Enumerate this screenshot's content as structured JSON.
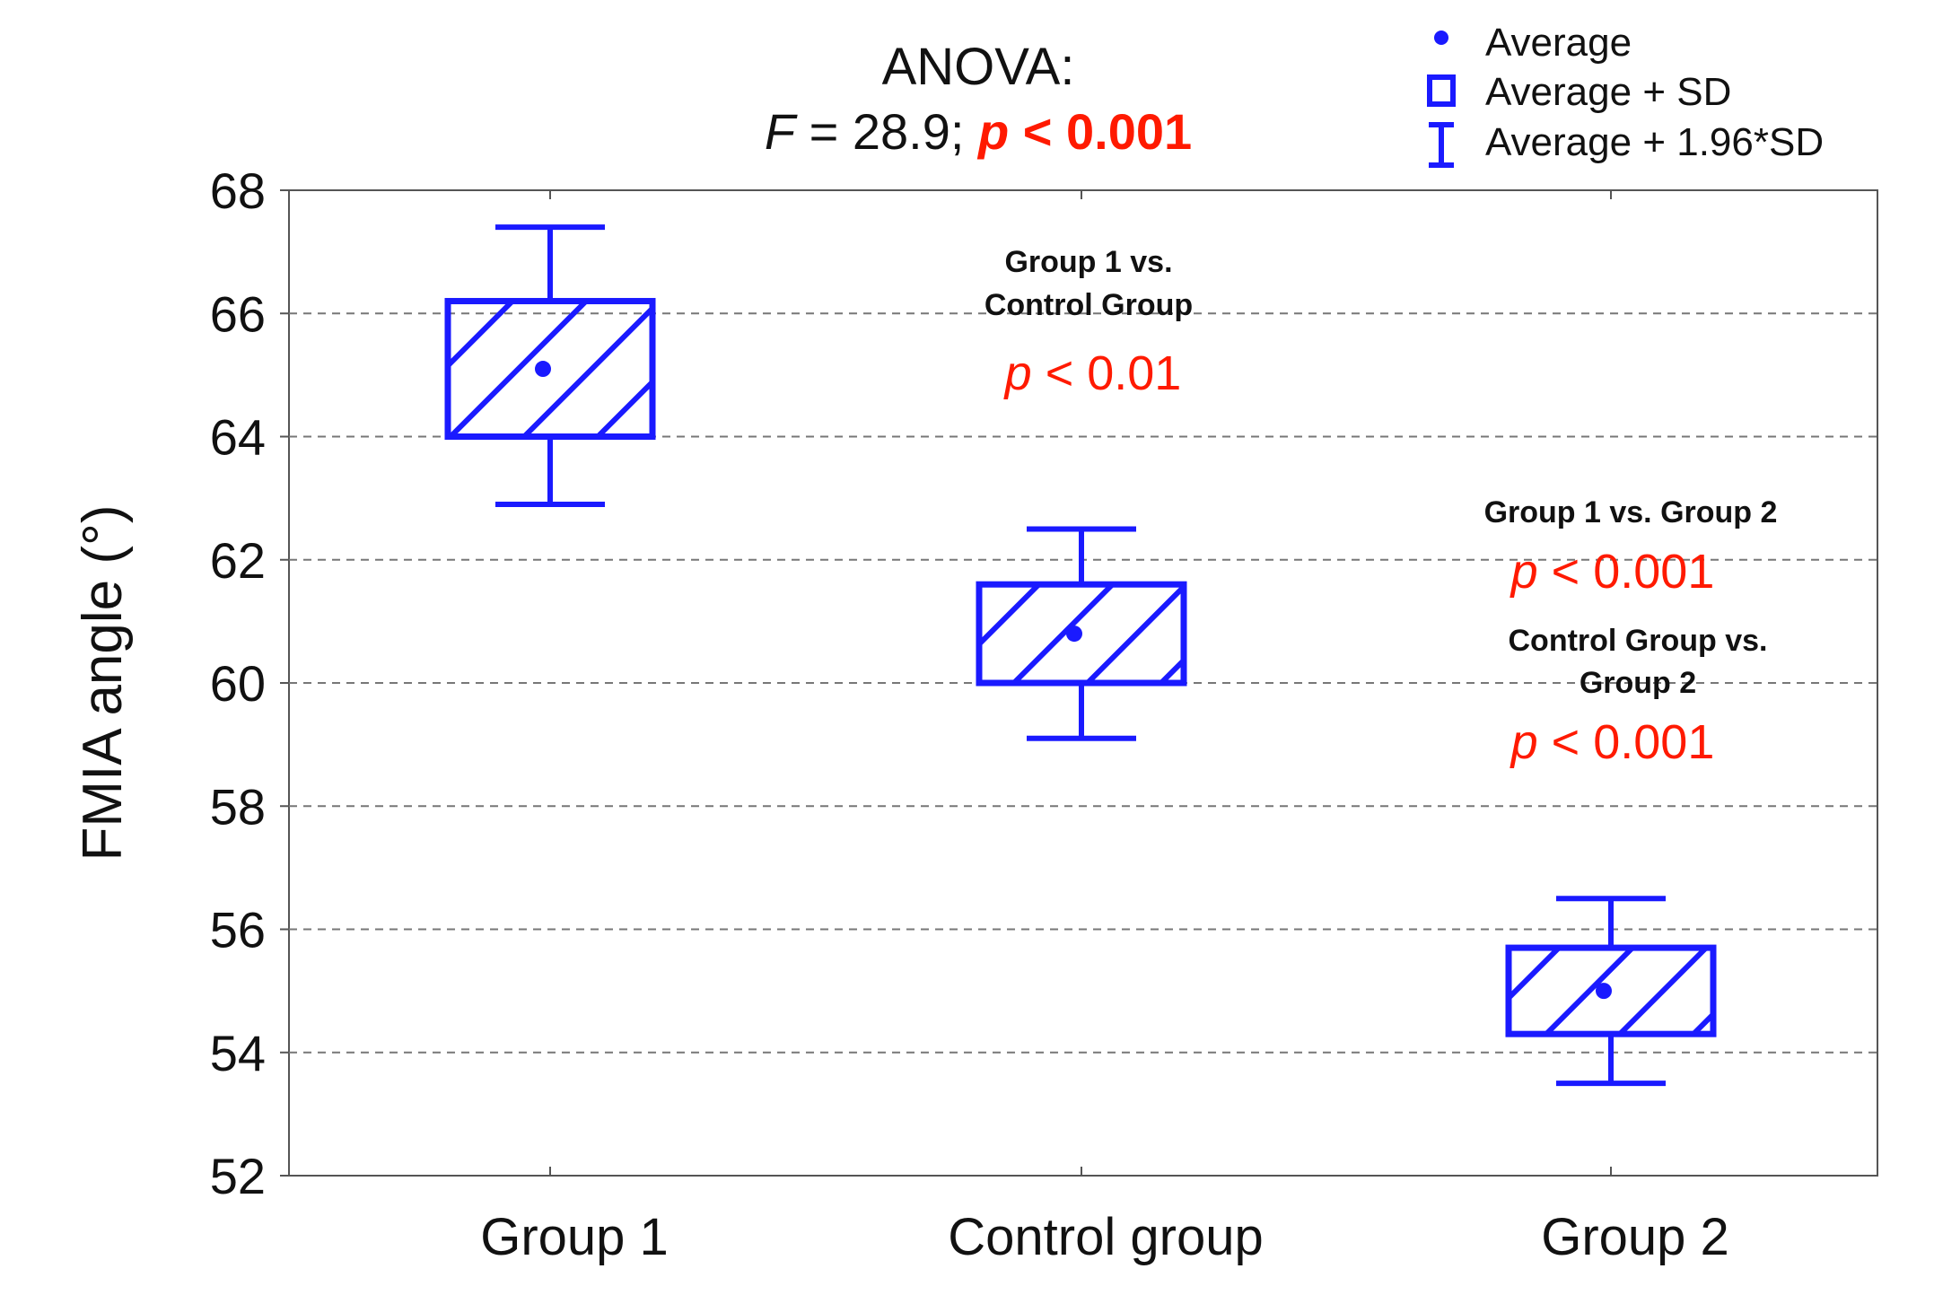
{
  "header": {
    "title": "ANOVA:",
    "stat_name": "F",
    "stat_text": " = 28.9; ",
    "p_symbol": "p",
    "p_text": " < 0.001"
  },
  "legend": {
    "items": [
      {
        "label": "Average",
        "icon": "dot-icon"
      },
      {
        "label": "Average + SD",
        "icon": "square-icon"
      },
      {
        "label": "Average + 1.96*SD",
        "icon": "whisker-icon"
      }
    ]
  },
  "annotations": [
    {
      "id": "g1-vs-control",
      "lines": [
        "Group 1 vs.",
        "Control Group"
      ],
      "p_symbol": "p",
      "p_text": " < 0.01"
    },
    {
      "id": "g1-vs-g2",
      "lines": [
        "Group 1 vs. Group 2"
      ],
      "p_symbol": "p",
      "p_text": " < 0.001"
    },
    {
      "id": "control-vs-g2",
      "lines": [
        "Control Group vs.",
        "Group 2"
      ],
      "p_symbol": "p",
      "p_text": " < 0.001"
    }
  ],
  "colors": {
    "box": "#1a1aff",
    "significance": "#ff1a00",
    "grid": "#777777",
    "axis": "#555555",
    "text": "#111111"
  },
  "chart_data": {
    "type": "box",
    "ylabel": "FMIA angle (°)",
    "xlabel": "",
    "ylim": [
      52,
      68
    ],
    "yticks": [
      52,
      54,
      56,
      58,
      60,
      62,
      64,
      66,
      68
    ],
    "grid": "horizontal dashed",
    "legend_position": "top-right",
    "categories": [
      "Group 1",
      "Control group",
      "Group 2"
    ],
    "series": [
      {
        "category": "Group 1",
        "average": 65.1,
        "sd_low": 64.0,
        "sd_high": 66.2,
        "ci_low": 62.9,
        "ci_high": 67.4
      },
      {
        "category": "Control group",
        "average": 60.8,
        "sd_low": 60.0,
        "sd_high": 61.6,
        "ci_low": 59.1,
        "ci_high": 62.5
      },
      {
        "category": "Group 2",
        "average": 55.0,
        "sd_low": 54.3,
        "sd_high": 55.7,
        "ci_low": 53.5,
        "ci_high": 56.5
      }
    ]
  }
}
